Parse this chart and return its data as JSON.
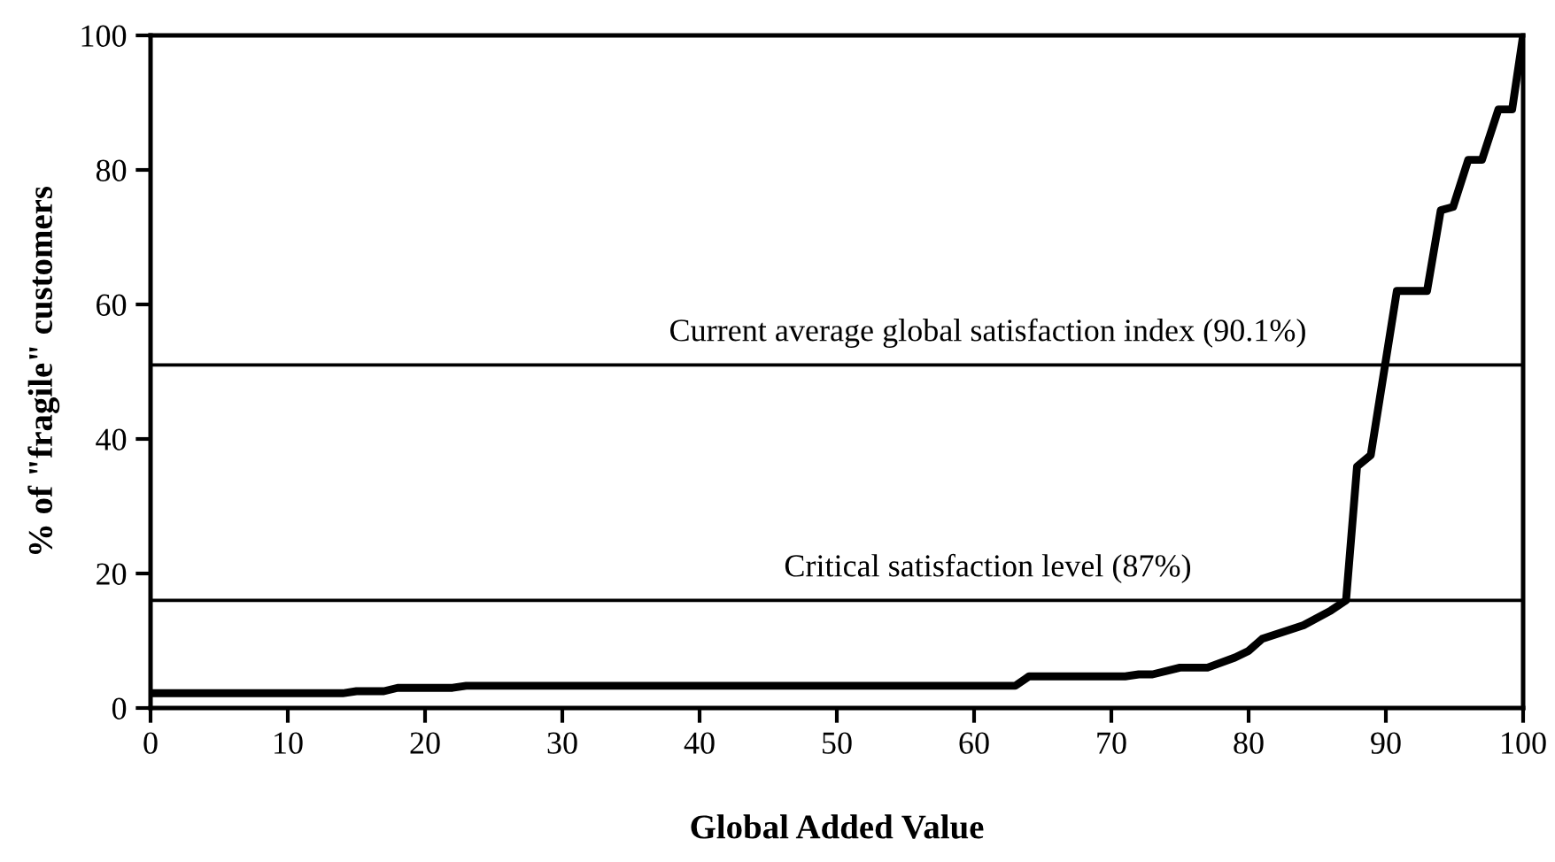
{
  "chart_data": {
    "type": "line",
    "xlabel": "Global Added Value",
    "ylabel": "% of \"fragile\" customers",
    "x": [
      0,
      14,
      15,
      17,
      18,
      22,
      23,
      63,
      64,
      71,
      72,
      73,
      75,
      77,
      79,
      80,
      81,
      84,
      86,
      87.1,
      87.9,
      88.9,
      90.8,
      93,
      94,
      94.9,
      96,
      97,
      98.2,
      99.2,
      100
    ],
    "series": [
      {
        "color": "#000000",
        "values": [
          2.2,
          2.2,
          2.5,
          2.5,
          3.0,
          3.0,
          3.3,
          3.3,
          4.7,
          4.7,
          5.0,
          5.0,
          6.0,
          6.0,
          7.5,
          8.5,
          10.3,
          12.3,
          14.5,
          16,
          35.9,
          37.6,
          62,
          62,
          74,
          74.5,
          81.5,
          81.5,
          89,
          89,
          100
        ]
      }
    ],
    "xlim": [
      0,
      100
    ],
    "xticks": [
      0,
      10,
      20,
      30,
      40,
      50,
      60,
      70,
      80,
      90,
      100
    ],
    "ylim": [
      0,
      100
    ],
    "yticks": [
      0,
      20,
      40,
      60,
      80,
      100
    ],
    "grid": false,
    "legend": false,
    "marker": "none",
    "line_style": "solid",
    "ref_lines": [
      {
        "axis": "y",
        "value": 51,
        "label": "Current average global satisfaction index (90.1%)",
        "color": "#000000"
      },
      {
        "axis": "y",
        "value": 16,
        "label": "Critical satisfaction level (87%)",
        "color": "#000000"
      }
    ]
  }
}
